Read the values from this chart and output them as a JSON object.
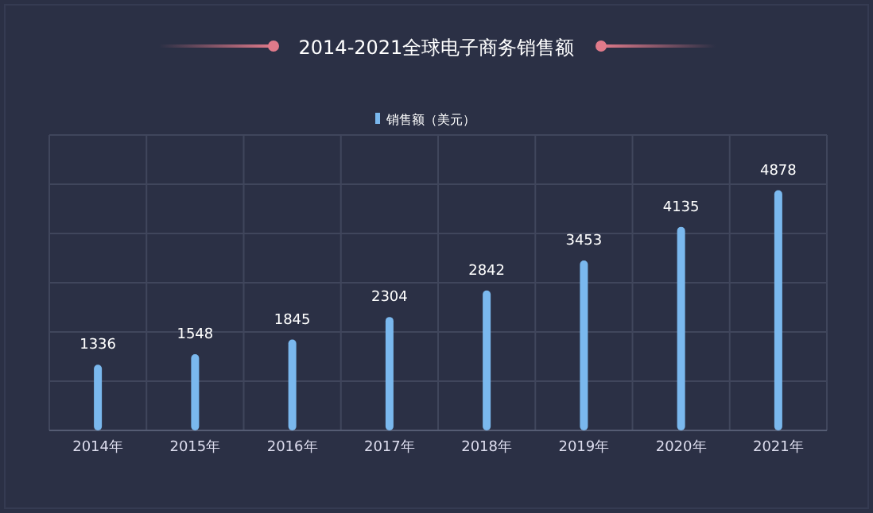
{
  "chart_data": {
    "type": "bar",
    "title": "2014-2021全球电子商务销售额",
    "categories": [
      "2014年",
      "2015年",
      "2016年",
      "2017年",
      "2018年",
      "2019年",
      "2020年",
      "2021年"
    ],
    "series": [
      {
        "name": "销售额（美元）",
        "color": "#7ab8ee",
        "values": [
          1336,
          1548,
          1845,
          2304,
          2842,
          3453,
          4135,
          4878
        ]
      }
    ],
    "ylim": [
      0,
      6000
    ],
    "yticks": [
      {
        "value": 0,
        "label": null
      },
      {
        "value": 1000,
        "label": null
      },
      {
        "value": 2000,
        "label": null
      },
      {
        "value": 3000,
        "label": null
      },
      {
        "value": 4000,
        "label": null
      },
      {
        "value": 5000,
        "label": null
      },
      {
        "value": 6000,
        "label": null
      }
    ],
    "tick_labels": "x",
    "grid": true,
    "legend": "top",
    "data_labels": true
  }
}
